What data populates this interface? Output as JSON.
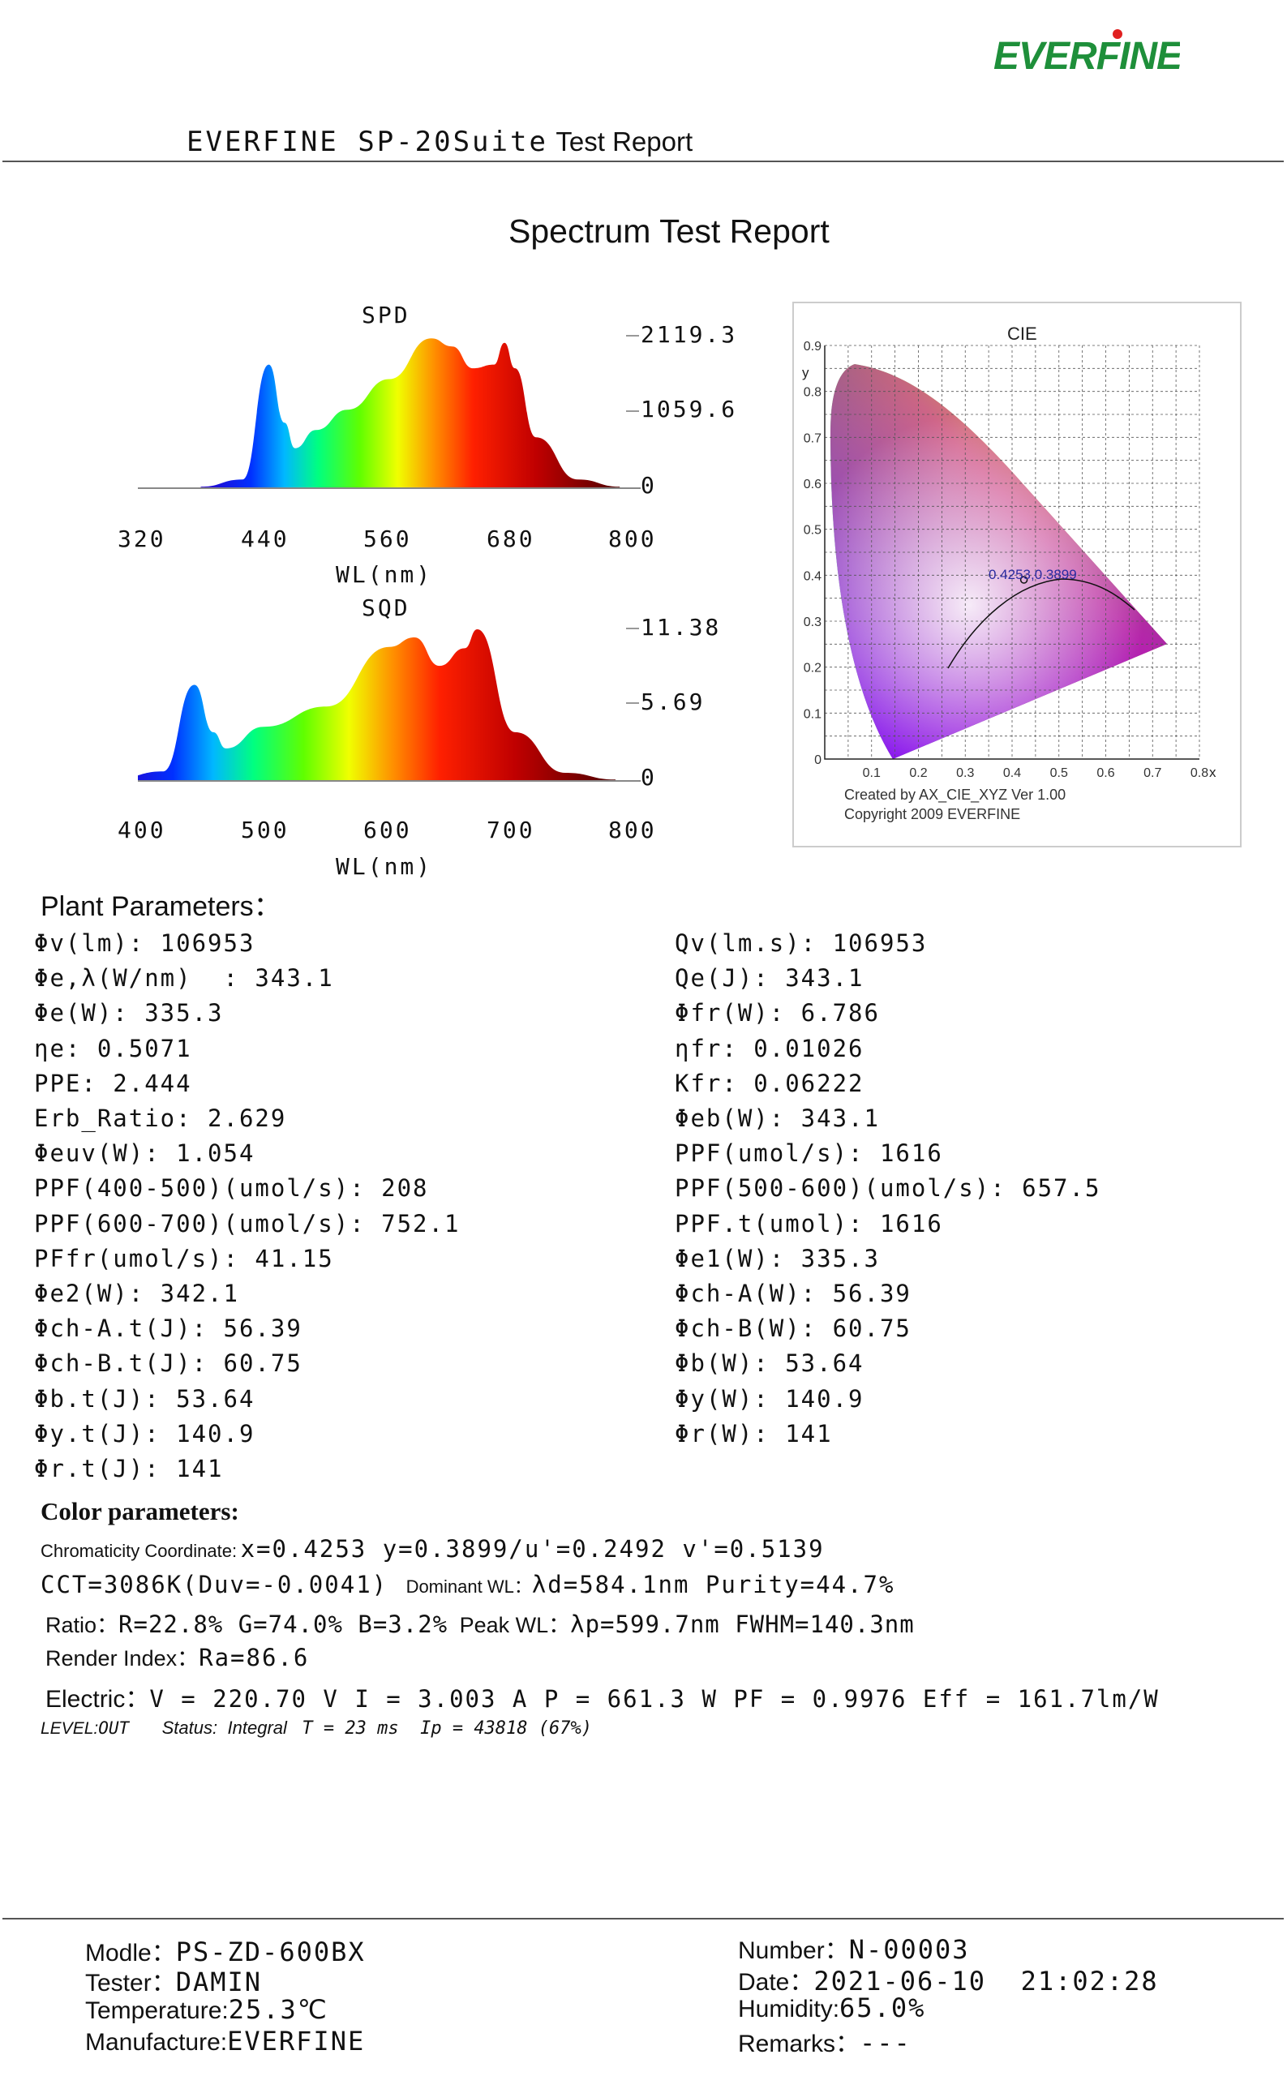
{
  "header": {
    "logo_text": "EVERFINE",
    "report_title_prefix": "EVERFINE SP-20Suite",
    "report_title_suffix": "Test Report"
  },
  "main_title": "Spectrum Test  Report",
  "spd": {
    "title": "SPD",
    "y_ticks": [
      "2119.3",
      "1059.6",
      "0"
    ],
    "x_ticks": [
      "320",
      "440",
      "560",
      "680",
      "800"
    ],
    "xlabel": "WL(nm)"
  },
  "sqd": {
    "title": "SQD",
    "y_ticks": [
      "11.38",
      "5.69",
      "0"
    ],
    "x_ticks": [
      "400",
      "500",
      "600",
      "700",
      "800"
    ],
    "xlabel": "WL(nm)"
  },
  "cie": {
    "title": "CIE",
    "y_axis_label": "y",
    "x_axis_label": "x",
    "y_ticks": [
      "0.9",
      "0.8",
      "0.7",
      "0.6",
      "0.5",
      "0.4",
      "0.3",
      "0.2",
      "0.1",
      "0"
    ],
    "x_ticks": [
      "0.1",
      "0.2",
      "0.3",
      "0.4",
      "0.5",
      "0.6",
      "0.7",
      "0.8"
    ],
    "point_label": "0.4253,0.3899",
    "credit_line1": "Created by AX_CIE_XYZ Ver 1.00",
    "credit_line2": "Copyright 2009 EVERFINE"
  },
  "chart_data": [
    {
      "type": "area",
      "title": "SPD",
      "xlabel": "WL(nm)",
      "x_ticks": [
        320,
        440,
        560,
        680,
        800
      ],
      "y_ticks": [
        0,
        1059.6,
        2119.3
      ],
      "x": [
        380,
        420,
        445,
        460,
        470,
        490,
        520,
        560,
        600,
        620,
        640,
        660,
        670,
        680,
        700,
        740,
        780
      ],
      "y": [
        20,
        120,
        1700,
        900,
        550,
        800,
        1080,
        1500,
        2060,
        1950,
        1650,
        1700,
        2000,
        1650,
        700,
        120,
        20
      ]
    },
    {
      "type": "area",
      "title": "SQD",
      "xlabel": "WL(nm)",
      "x_ticks": [
        400,
        500,
        600,
        700,
        800
      ],
      "y_ticks": [
        0,
        5.69,
        11.38
      ],
      "x": [
        380,
        420,
        445,
        460,
        470,
        500,
        550,
        600,
        620,
        640,
        660,
        670,
        700,
        740,
        780
      ],
      "y": [
        0.1,
        0.7,
        7.1,
        3.6,
        2.4,
        4.0,
        5.5,
        9.9,
        10.6,
        8.5,
        9.8,
        11.2,
        3.6,
        0.6,
        0.1
      ]
    },
    {
      "type": "scatter",
      "title": "CIE",
      "xlabel": "x",
      "ylabel": "y",
      "xlim": [
        0,
        0.8
      ],
      "ylim": [
        0,
        0.9
      ],
      "points": [
        {
          "x": 0.4253,
          "y": 0.3899,
          "label": "0.4253,0.3899"
        }
      ]
    }
  ],
  "plant": {
    "title": "Plant Parameters：",
    "left": [
      "Φv(lm): 106953",
      "Φe,λ(W/nm)  : 343.1",
      "Φe(W): 335.3",
      "ηe: 0.5071",
      "PPE: 2.444",
      "Erb_Ratio: 2.629",
      "Φeuv(W): 1.054",
      "PPF(400-500)(umol/s): 208",
      "PPF(600-700)(umol/s): 752.1",
      "PFfr(umol/s): 41.15",
      "Φe2(W): 342.1",
      "Φch-A.t(J): 56.39",
      "Φch-B.t(J): 60.75",
      "Φb.t(J): 53.64",
      "Φy.t(J): 140.9",
      "Φr.t(J): 141"
    ],
    "right": [
      "Qv(lm.s): 106953",
      "Qe(J): 343.1",
      "Φfr(W): 6.786",
      "ηfr: 0.01026",
      "Kfr: 0.06222",
      "Φeb(W): 343.1",
      "PPF(umol/s): 1616",
      "PPF(500-600)(umol/s): 657.5",
      "PPF.t(umol): 1616",
      "Φe1(W): 335.3",
      "Φch-A(W): 56.39",
      "Φch-B(W): 60.75",
      "Φb(W): 53.64",
      "Φy(W): 140.9",
      "Φr(W): 141"
    ]
  },
  "color": {
    "title": "Color parameters:",
    "chroma_label": "Chromaticity Coordinate:",
    "chroma_value": "x=0.4253  y=0.3899/u'=0.2492  v'=0.5139",
    "cct_value": "CCT=3086K(Duv=-0.0041)",
    "dominant_label": "Dominant WL：",
    "dominant_value": "λd=584.1nm  Purity=44.7%",
    "ratio_label": "Ratio：",
    "ratio_value": "R=22.8% G=74.0% B=3.2%",
    "peak_label": "Peak WL：",
    "peak_value": "λp=599.7nm  FWHM=140.3nm",
    "render_label": "Render Index：",
    "render_value": "Ra=86.6"
  },
  "electric": {
    "label": "Electric：",
    "value": "V = 220.70 V I = 3.003 A P = 661.3 W PF = 0.9976 Eff = 161.7lm/W"
  },
  "status": {
    "level_label": "LEVEL:",
    "level_value": "OUT",
    "status_label": "Status:",
    "status_value": "Integral",
    "detail": "T = 23 ms  Ip = 43818 (67%)"
  },
  "footer": {
    "model_label": "Modle：",
    "model_value": "PS-ZD-600BX",
    "tester_label": "Tester：",
    "tester_value": "DAMIN",
    "temp_label": "Temperature:",
    "temp_value": "25.3℃",
    "manu_label": "Manufacture:",
    "manu_value": "EVERFINE",
    "number_label": "Number：",
    "number_value": "N-00003",
    "date_label": "Date：",
    "date_value": "2021-06-10  21:02:28",
    "humidity_label": "Humidity:",
    "humidity_value": "65.0%",
    "remarks_label": "Remarks：",
    "remarks_value": "---"
  }
}
